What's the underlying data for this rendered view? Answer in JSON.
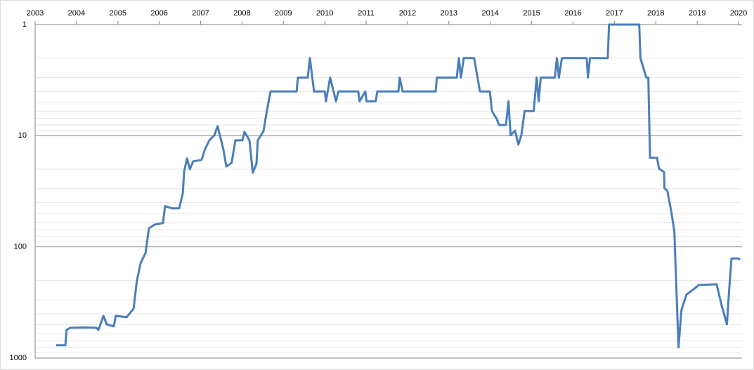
{
  "chart_data": {
    "type": "line",
    "x": [
      2003.51,
      2003.73,
      2003.76,
      2003.85,
      2004.19,
      2004.48,
      2004.53,
      2004.65,
      2004.73,
      2004.9,
      2004.95,
      2005.21,
      2005.38,
      2005.46,
      2005.55,
      2005.67,
      2005.75,
      2005.89,
      2006.09,
      2006.14,
      2006.31,
      2006.48,
      2006.57,
      2006.6,
      2006.67,
      2006.74,
      2006.82,
      2007.02,
      2007.11,
      2007.21,
      2007.33,
      2007.41,
      2007.55,
      2007.62,
      2007.75,
      2007.84,
      2008.01,
      2008.06,
      2008.18,
      2008.26,
      2008.35,
      2008.38,
      2008.52,
      2008.6,
      2008.69,
      2009.32,
      2009.35,
      2009.59,
      2009.64,
      2009.74,
      2010.0,
      2010.03,
      2010.13,
      2010.27,
      2010.33,
      2010.81,
      2010.84,
      2010.98,
      2011.01,
      2011.23,
      2011.27,
      2011.78,
      2011.81,
      2011.88,
      2012.68,
      2012.71,
      2013.19,
      2013.24,
      2013.29,
      2013.36,
      2013.61,
      2013.75,
      2013.99,
      2014.04,
      2014.16,
      2014.21,
      2014.38,
      2014.44,
      2014.49,
      2014.6,
      2014.68,
      2014.75,
      2014.83,
      2015.05,
      2015.12,
      2015.17,
      2015.22,
      2015.56,
      2015.61,
      2015.66,
      2015.73,
      2016.33,
      2016.36,
      2016.41,
      2016.84,
      2016.87,
      2017.6,
      2017.63,
      2017.77,
      2017.82,
      2017.86,
      2018.03,
      2018.08,
      2018.2,
      2018.21,
      2018.28,
      2018.37,
      2018.45,
      2018.48,
      2018.55,
      2018.62,
      2018.74,
      2018.96,
      2019.04,
      2019.47,
      2019.59,
      2019.72,
      2019.77,
      2019.83,
      2019.98,
      2020.04
    ],
    "series": [
      {
        "color": "#4a7ebb",
        "values": [
          767,
          767,
          557,
          534,
          531,
          534,
          557,
          417,
          497,
          519,
          417,
          429,
          360,
          201,
          140,
          113,
          68,
          63,
          61,
          43,
          45,
          45,
          33,
          21,
          16,
          20,
          17,
          16.5,
          13.1,
          11,
          9.9,
          8.2,
          13.3,
          18.9,
          17.5,
          11,
          11,
          9.2,
          11,
          21.5,
          17.8,
          11,
          9.1,
          6,
          4,
          4,
          3,
          3,
          2,
          4,
          4,
          4.9,
          3,
          4.9,
          4,
          4,
          4.9,
          4,
          4.9,
          4.9,
          4,
          4,
          3,
          4,
          4,
          3,
          3,
          2,
          3,
          2,
          2,
          4,
          4,
          6,
          7.1,
          8,
          8,
          4.9,
          9.9,
          9,
          12,
          9.9,
          6,
          6,
          3,
          4.9,
          3,
          3,
          2,
          3,
          2,
          2,
          3,
          2,
          2,
          1,
          1,
          2,
          3,
          3,
          15.8,
          15.8,
          19.8,
          21.2,
          29.6,
          31.3,
          47,
          73,
          155,
          802,
          371,
          269,
          233,
          220,
          217,
          335,
          497,
          251,
          127,
          127,
          129
        ]
      }
    ],
    "xlim": [
      2003,
      2020.085
    ],
    "xticks": [
      2003,
      2004,
      2005,
      2006,
      2007,
      2008,
      2009,
      2010,
      2011,
      2012,
      2013,
      2014,
      2015,
      2016,
      2017,
      2018,
      2019,
      2020
    ],
    "ylim": [
      1,
      1000
    ],
    "yticks": [
      1,
      10,
      100,
      1000
    ],
    "log_scale": true,
    "y_inverted": true,
    "grid": true
  }
}
